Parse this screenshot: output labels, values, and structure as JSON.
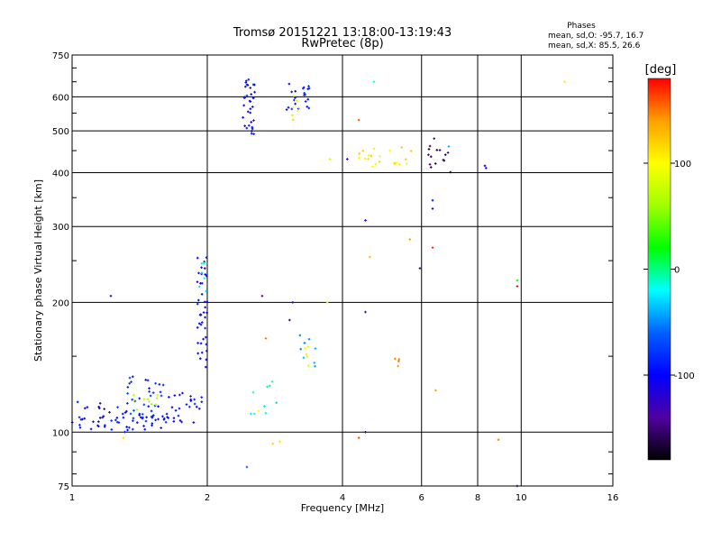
{
  "header": {
    "title": "Tromsø 20151221 13:18:00-13:19:43",
    "subtitle": "RwPretec (8p)",
    "phases_title": "Phases",
    "phases_o": "mean, sd,O: -95.7, 16.7",
    "phases_x": "mean, sd,X:  85.5, 26.6"
  },
  "colorbar": {
    "unit_label": "[deg]",
    "tick_labels": [
      "100",
      "0",
      "-100"
    ],
    "tick_values": [
      100,
      0,
      -100
    ],
    "range": [
      -180,
      180
    ],
    "colors": [
      "#000000",
      "#5000a0",
      "#0000ff",
      "#0060ff",
      "#00ffff",
      "#00ff00",
      "#a0ff00",
      "#ffff00",
      "#ffa000",
      "#ff0000"
    ]
  },
  "chart_data": {
    "type": "scatter",
    "xlabel": "Frequency [MHz]",
    "ylabel": "Stationary phase Virtual Height [km]",
    "x_scale": "log",
    "y_scale": "log",
    "xlim": [
      1,
      16
    ],
    "ylim": [
      75,
      750
    ],
    "x_ticks": [
      1,
      2,
      4,
      6,
      8,
      10,
      16
    ],
    "x_tick_labels": [
      "1",
      "2",
      "4",
      "6",
      "8",
      "10",
      "16"
    ],
    "y_ticks": [
      75,
      100,
      200,
      300,
      400,
      500,
      600,
      750
    ],
    "y_tick_labels": [
      "75",
      "100",
      "200",
      "300",
      "400",
      "500",
      "600",
      "750"
    ],
    "grid": true,
    "clusters": [
      {
        "x": [
          1.0,
          1.18
        ],
        "y": [
          100,
          120
        ],
        "phase": -100,
        "n": 22
      },
      {
        "x": [
          1.18,
          1.6
        ],
        "y": [
          100,
          112
        ],
        "phase": -95,
        "n": 35
      },
      {
        "x": [
          1.25,
          1.6
        ],
        "y": [
          108,
          135
        ],
        "phase": -85,
        "n": 35
      },
      {
        "x": [
          1.35,
          1.55
        ],
        "y": [
          110,
          125
        ],
        "phase": 70,
        "n": 10
      },
      {
        "x": [
          1.6,
          1.95
        ],
        "y": [
          105,
          125
        ],
        "phase": -95,
        "n": 30
      },
      {
        "x": [
          1.9,
          2.0
        ],
        "y": [
          140,
          260
        ],
        "phase": -100,
        "n": 40
      },
      {
        "x": [
          1.92,
          2.0
        ],
        "y": [
          200,
          260
        ],
        "phase": -20,
        "n": 6
      },
      {
        "x": [
          2.4,
          2.55
        ],
        "y": [
          490,
          660
        ],
        "phase": -100,
        "n": 35
      },
      {
        "x": [
          3.0,
          3.4
        ],
        "y": [
          560,
          650
        ],
        "phase": -95,
        "n": 22
      },
      {
        "x": [
          3.05,
          3.3
        ],
        "y": [
          520,
          620
        ],
        "phase": 110,
        "n": 8
      },
      {
        "x": [
          3.2,
          3.5
        ],
        "y": [
          140,
          172
        ],
        "phase": -40,
        "n": 8
      },
      {
        "x": [
          3.25,
          3.4
        ],
        "y": [
          140,
          160
        ],
        "phase": 100,
        "n": 5
      },
      {
        "x": [
          2.5,
          2.9
        ],
        "y": [
          110,
          135
        ],
        "phase": -10,
        "n": 8
      },
      {
        "x": [
          4.3,
          5.8
        ],
        "y": [
          410,
          460
        ],
        "phase": 110,
        "n": 20
      },
      {
        "x": [
          6.2,
          7.1
        ],
        "y": [
          400,
          470
        ],
        "phase": -150,
        "n": 14
      },
      {
        "x": [
          5.2,
          5.35
        ],
        "y": [
          142,
          148
        ],
        "phase": 140,
        "n": 5
      }
    ],
    "points": [
      {
        "x": 1.22,
        "y": 207,
        "phase": -130
      },
      {
        "x": 2.65,
        "y": 207,
        "phase": -140
      },
      {
        "x": 3.1,
        "y": 200,
        "phase": -120
      },
      {
        "x": 3.7,
        "y": 200,
        "phase": 110
      },
      {
        "x": 3.05,
        "y": 182,
        "phase": -150
      },
      {
        "x": 2.7,
        "y": 165,
        "phase": 150
      },
      {
        "x": 4.5,
        "y": 190,
        "phase": -120
      },
      {
        "x": 4.6,
        "y": 255,
        "phase": 130
      },
      {
        "x": 4.5,
        "y": 310,
        "phase": -110
      },
      {
        "x": 4.35,
        "y": 530,
        "phase": 160
      },
      {
        "x": 4.7,
        "y": 650,
        "phase": -20
      },
      {
        "x": 5.65,
        "y": 280,
        "phase": 140
      },
      {
        "x": 5.95,
        "y": 240,
        "phase": -150
      },
      {
        "x": 6.35,
        "y": 268,
        "phase": 170
      },
      {
        "x": 6.35,
        "y": 345,
        "phase": -90
      },
      {
        "x": 6.35,
        "y": 330,
        "phase": -120
      },
      {
        "x": 6.45,
        "y": 125,
        "phase": 140
      },
      {
        "x": 4.35,
        "y": 97,
        "phase": 160
      },
      {
        "x": 4.5,
        "y": 100,
        "phase": -120
      },
      {
        "x": 8.3,
        "y": 415,
        "phase": -110
      },
      {
        "x": 8.35,
        "y": 410,
        "phase": -130
      },
      {
        "x": 8.9,
        "y": 96,
        "phase": 150
      },
      {
        "x": 9.8,
        "y": 225,
        "phase": 20
      },
      {
        "x": 9.8,
        "y": 218,
        "phase": 180
      },
      {
        "x": 9.8,
        "y": 75,
        "phase": -120
      },
      {
        "x": 12.5,
        "y": 650,
        "phase": 110
      },
      {
        "x": 2.45,
        "y": 83,
        "phase": -60
      },
      {
        "x": 2.8,
        "y": 94,
        "phase": 120
      },
      {
        "x": 2.9,
        "y": 95,
        "phase": 110
      },
      {
        "x": 1.3,
        "y": 97,
        "phase": 110
      },
      {
        "x": 2.85,
        "y": 117,
        "phase": -30
      },
      {
        "x": 2.6,
        "y": 112,
        "phase": 100
      },
      {
        "x": 3.75,
        "y": 430,
        "phase": 80
      },
      {
        "x": 4.1,
        "y": 430,
        "phase": -120
      },
      {
        "x": 5.1,
        "y": 450,
        "phase": 100
      },
      {
        "x": 6.9,
        "y": 460,
        "phase": -40
      },
      {
        "x": 6.4,
        "y": 480,
        "phase": -140
      }
    ]
  }
}
